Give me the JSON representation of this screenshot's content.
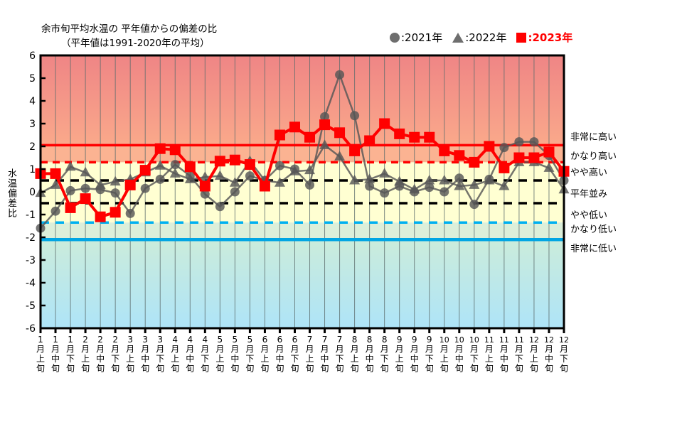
{
  "title": {
    "line1": "余市旬平均水温の 平年値からの偏差の比",
    "line2": "（平年値は1991-2020年の平均）"
  },
  "legend": {
    "items": [
      {
        "marker": "circle-icon",
        "label": ":2021年",
        "marker_color": "#6e6e6e",
        "text_color": "#000000"
      },
      {
        "marker": "triangle-icon",
        "label": ":2022年",
        "marker_color": "#6e6e6e",
        "text_color": "#000000"
      },
      {
        "marker": "square-icon",
        "label": ":2023年",
        "marker_color": "#ff0000",
        "text_color": "#ff0000"
      }
    ]
  },
  "y_axis": {
    "title": "水温偏差比",
    "min": -6,
    "max": 6,
    "step": 1
  },
  "level_labels": [
    "非常に高い",
    "かなり高い",
    "やや高い",
    "平年並み",
    "やや低い",
    "かなり低い",
    "非常に低い"
  ],
  "colors": {
    "red": "#ff0000",
    "gray_series": "#575757",
    "cyan_dashed": "#00b0f0",
    "blue_solid": "#00a5e3",
    "zone_top_grad_start": "#ef8585",
    "zone_top_grad_end": "#faa98b",
    "zone_peach": "#fbb392",
    "zone_yellow": "#ffffd2",
    "zone_green": "#dcefda",
    "zone_bottom_grad_start": "#cbecdb",
    "zone_bottom_grad_end": "#aee4f8"
  },
  "chart_data": {
    "type": "line",
    "title": "余市旬平均水温の平年値からの偏差の比（平年値は1991-2020年の平均）",
    "ylabel": "水温偏差比",
    "ylim": [
      -6,
      6
    ],
    "grid": "vertical-only",
    "legend_position": "top-right",
    "categories": [
      "1月上旬",
      "1月中旬",
      "1月下旬",
      "2月上旬",
      "2月中旬",
      "2月下旬",
      "3月上旬",
      "3月中旬",
      "3月下旬",
      "4月上旬",
      "4月中旬",
      "4月下旬",
      "5月上旬",
      "5月中旬",
      "5月下旬",
      "6月上旬",
      "6月中旬",
      "6月下旬",
      "7月上旬",
      "7月中旬",
      "7月下旬",
      "8月上旬",
      "8月中旬",
      "8月下旬",
      "9月上旬",
      "9月中旬",
      "9月下旬",
      "10月上旬",
      "10月中旬",
      "10月下旬",
      "11月上旬",
      "11月中旬",
      "11月下旬",
      "12月上旬",
      "12月中旬",
      "12月下旬"
    ],
    "series": [
      {
        "name": "2021年",
        "marker": "circle",
        "values": [
          -1.6,
          -0.85,
          0.05,
          0.15,
          0.1,
          -0.05,
          -0.95,
          0.15,
          0.55,
          1.2,
          0.7,
          -0.1,
          -0.65,
          0.0,
          0.7,
          0.5,
          1.15,
          1.0,
          0.3,
          3.3,
          5.15,
          3.35,
          0.25,
          -0.05,
          0.25,
          0.0,
          0.2,
          0.0,
          0.6,
          -0.55,
          0.55,
          1.95,
          2.2,
          2.2,
          1.6,
          0.5
        ]
      },
      {
        "name": "2022年",
        "marker": "triangle",
        "values": [
          -0.05,
          0.3,
          1.1,
          0.85,
          0.3,
          0.45,
          0.55,
          0.85,
          1.15,
          0.8,
          0.55,
          0.65,
          0.7,
          0.4,
          1.35,
          0.5,
          0.4,
          0.9,
          0.95,
          2.05,
          1.55,
          0.5,
          0.55,
          0.8,
          0.45,
          0.1,
          0.5,
          0.5,
          0.25,
          0.3,
          0.5,
          0.25,
          1.3,
          1.3,
          1.05,
          0.1
        ]
      },
      {
        "name": "2023年",
        "marker": "square",
        "values": [
          0.8,
          0.8,
          -0.7,
          -0.3,
          -1.1,
          -0.9,
          0.3,
          0.95,
          1.9,
          1.85,
          1.1,
          0.25,
          1.35,
          1.4,
          1.2,
          0.25,
          2.5,
          2.85,
          2.4,
          2.95,
          2.6,
          1.8,
          2.25,
          3.0,
          2.55,
          2.4,
          2.4,
          1.8,
          1.6,
          1.3,
          2.0,
          1.05,
          1.5,
          1.5,
          1.75,
          0.9
        ]
      }
    ],
    "thresholds": {
      "very_high": 2.05,
      "fairly_high": 1.3,
      "slightly_high": 0.5,
      "slightly_low": -0.5,
      "fairly_low": -1.35,
      "very_low": -2.1
    }
  }
}
